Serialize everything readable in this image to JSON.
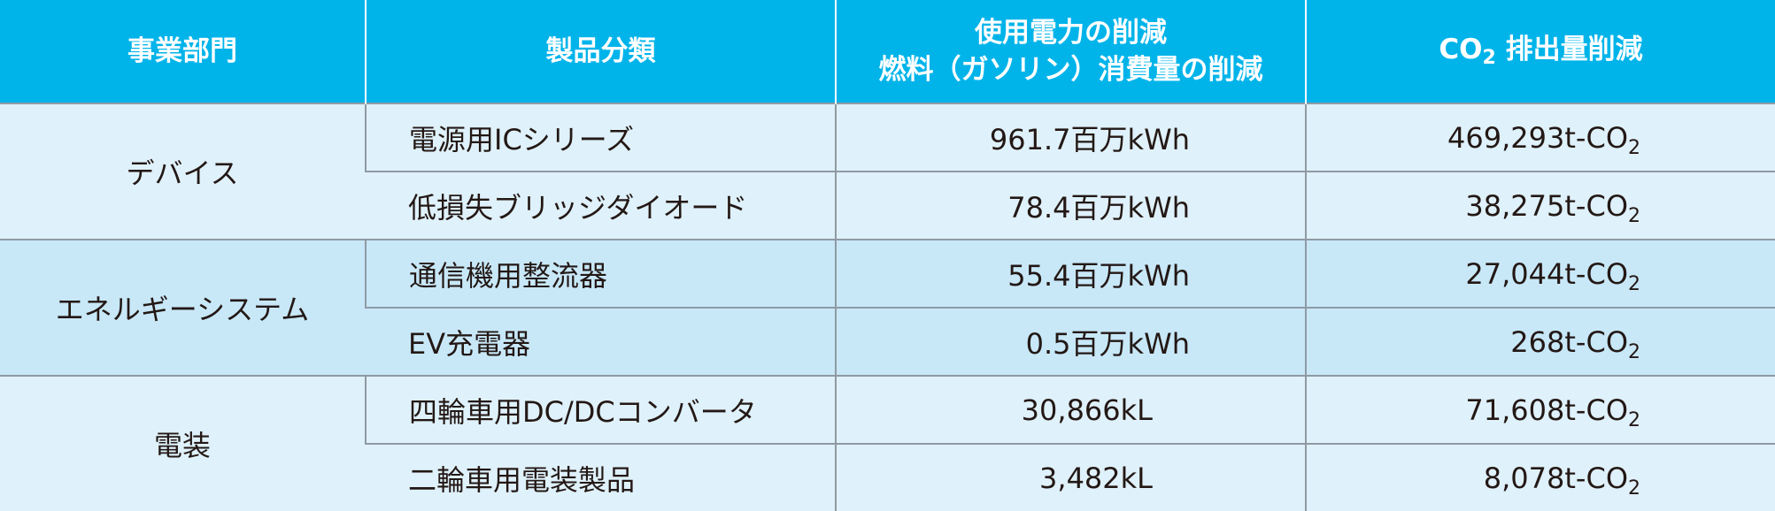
{
  "header": {
    "col_department": "事業部門",
    "col_category": "製品分類",
    "col_reduction_line1": "使用電力の削減",
    "col_reduction_line2": "燃料（ガソリン）消費量の削減",
    "col_co2_prefix": "CO",
    "col_co2_subscript": "2",
    "col_co2_suffix": "排出量削減"
  },
  "co2_unit": {
    "text": "t-CO",
    "subscript": "2"
  },
  "groups": [
    {
      "department": "デバイス",
      "rows": [
        {
          "product": "電源用ICシリーズ",
          "reduction": "961.7百万kWh",
          "co2": "469,293"
        },
        {
          "product": "低損失ブリッジダイオード",
          "reduction": "78.4百万kWh",
          "co2": "38,275"
        }
      ]
    },
    {
      "department": "エネルギーシステム",
      "rows": [
        {
          "product": "通信機用整流器",
          "reduction": "55.4百万kWh",
          "co2": "27,044"
        },
        {
          "product": "EV充電器",
          "reduction": "0.5百万kWh",
          "co2": "268"
        }
      ]
    },
    {
      "department": "電装",
      "rows": [
        {
          "product": "四輪車用DC/DCコンバータ",
          "reduction": "30,866kL",
          "co2": "71,608"
        },
        {
          "product": "二輪車用電装製品",
          "reduction": "3,482kL",
          "co2": "8,078"
        }
      ]
    }
  ],
  "colors": {
    "header_bg": "#00b4ea",
    "group_light_bg": "#dff1fa",
    "group_mid_bg": "#c8e8f8",
    "grid_line": "#8f9aa3"
  }
}
